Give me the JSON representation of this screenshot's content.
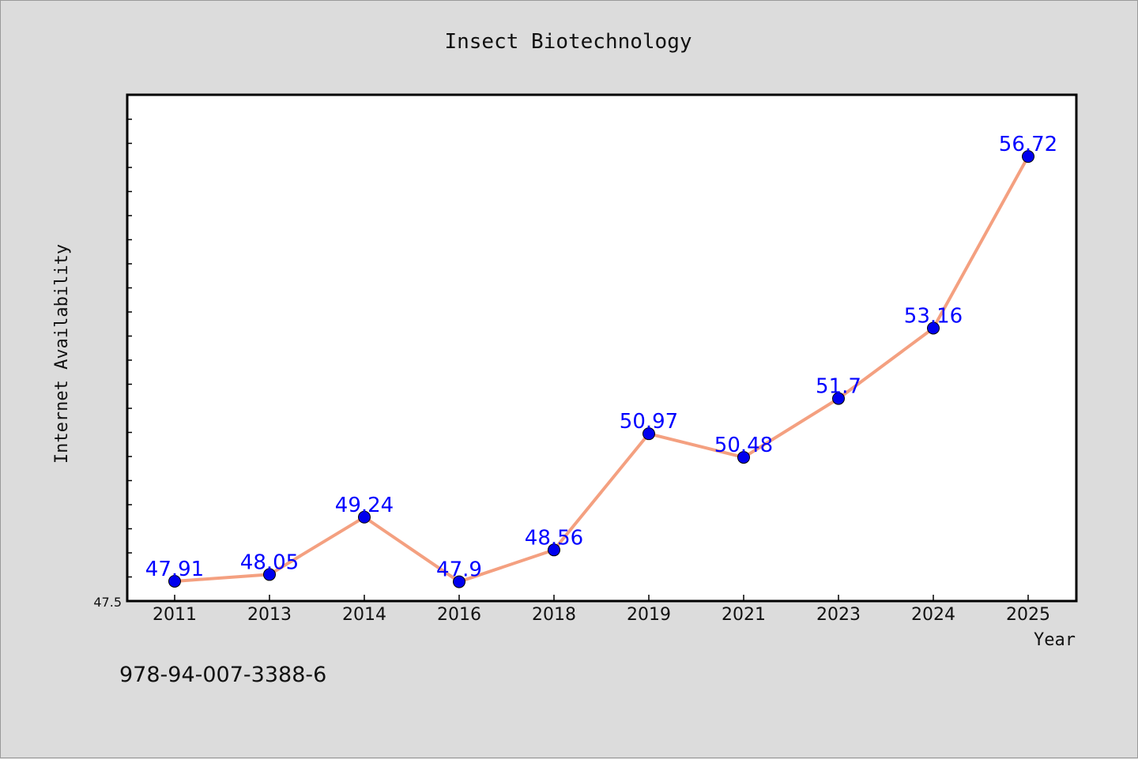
{
  "chart_data": {
    "type": "line",
    "title": "Insect Biotechnology",
    "xlabel": "Year",
    "ylabel": "Internet Availability",
    "categories": [
      "2011",
      "2013",
      "2014",
      "2016",
      "2018",
      "2019",
      "2021",
      "2023",
      "2024",
      "2025"
    ],
    "series": [
      {
        "values": [
          47.91,
          48.05,
          49.24,
          47.9,
          48.56,
          50.97,
          50.48,
          51.7,
          53.16,
          56.72
        ],
        "labels": [
          "47.91",
          "48.05",
          "49.24",
          "47.9",
          "48.56",
          "50.97",
          "50.48",
          "51.7",
          "53.16",
          "56.72"
        ],
        "line_color": "#f4a080",
        "marker_color": "#0000ee"
      }
    ],
    "ylim": [
      47.5,
      58.0
    ],
    "y_tick_labels": [
      "47.5"
    ],
    "grid": false,
    "legend": "none",
    "colors": {
      "background": "#dcdcdc",
      "plot_background": "#ffffff",
      "data_label": "#0000ff"
    }
  },
  "footer": {
    "isbn": "978-94-007-3388-6"
  }
}
